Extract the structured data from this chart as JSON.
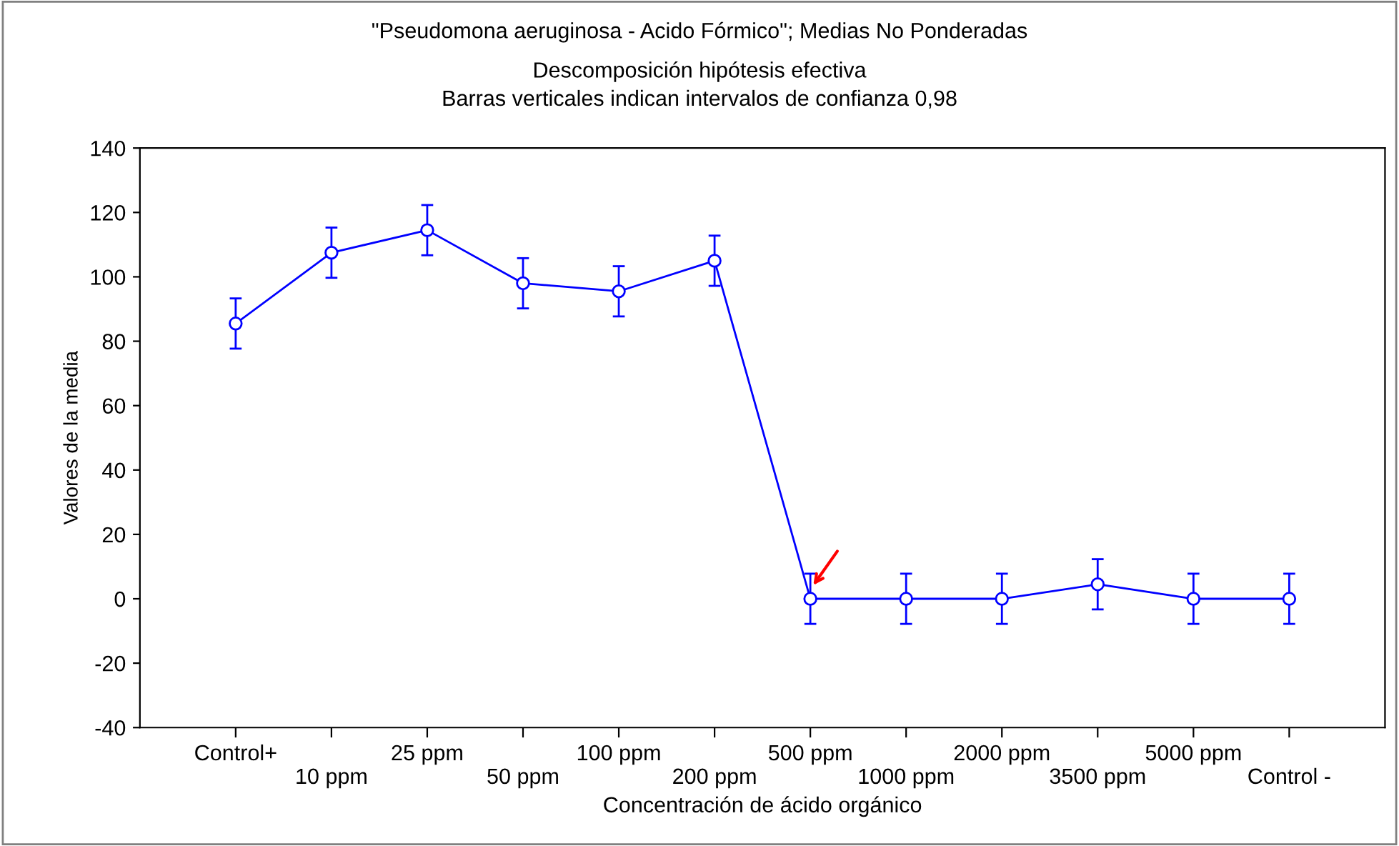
{
  "chart_data": {
    "type": "line",
    "title": "\"Pseudomona aeruginosa - Acido Fórmico\"; Medias No Ponderadas",
    "subtitle": "Descomposición hipótesis efectiva\nBarras verticales indican intervalos de confianza 0,98",
    "xlabel": "Concentración de ácido orgánico",
    "ylabel": "Valores de la media",
    "categories": [
      "Control+",
      "10 ppm",
      "25 ppm",
      "50 ppm",
      "100 ppm",
      "200 ppm",
      "500 ppm",
      "1000 ppm",
      "2000 ppm",
      "3500 ppm",
      "5000 ppm",
      "Control -"
    ],
    "series": [
      {
        "color": "#0000ff",
        "values": [
          85.5,
          107.5,
          114.5,
          98,
          95.5,
          105,
          0,
          0,
          0,
          4.5,
          0,
          0
        ],
        "errors": [
          7.8,
          7.8,
          7.8,
          7.8,
          7.8,
          7.8,
          7.8,
          7.8,
          7.8,
          7.8,
          7.8,
          7.8
        ]
      }
    ],
    "ylim": [
      -40,
      140
    ],
    "yticks": [
      -40,
      -20,
      0,
      20,
      40,
      60,
      80,
      100,
      120,
      140
    ],
    "marker": "circle",
    "line_style": "solid",
    "grid": false,
    "legend": false
  }
}
